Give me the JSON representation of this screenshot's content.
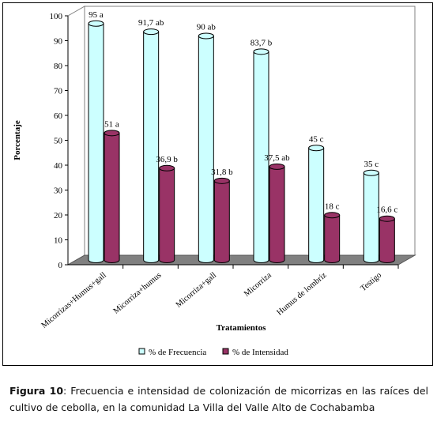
{
  "chart_data": {
    "type": "bar",
    "ylabel": "Porcentaje",
    "xlabel": "Tratamientos",
    "ylim": [
      0,
      100
    ],
    "yticks": [
      "0",
      "10",
      "20",
      "30",
      "40",
      "50",
      "60",
      "70",
      "80",
      "90",
      "100"
    ],
    "categories": [
      "Micorrizas+Humus+gall",
      "Micorriza+humus",
      "Micorriza+gall",
      "Micorriza",
      "Humus de lombriz",
      "Testigo"
    ],
    "series": [
      {
        "name": "% de Frecuencia",
        "color": "#ccffff",
        "values": [
          95,
          91.7,
          90,
          83.7,
          45,
          35
        ],
        "labels": [
          "95 a",
          "91,7 ab",
          "90 ab",
          "83,7 b",
          "45 c",
          "35 c"
        ]
      },
      {
        "name": "% de Intensidad",
        "color": "#993366",
        "values": [
          51,
          36.9,
          31.8,
          37.5,
          18,
          16.6
        ],
        "labels": [
          "51 a",
          "36,9 b",
          "31,8 b",
          "37,5 ab",
          "18 c",
          "16,6 c"
        ]
      }
    ],
    "grid": false,
    "legend_position": "bottom"
  },
  "caption": {
    "label": "Figura 10",
    "text": ": Frecuencia e intensidad de colonización de micorrizas en las raíces del cultivo de cebolla, en la comunidad La Villa del Valle Alto de Cochabamba"
  }
}
